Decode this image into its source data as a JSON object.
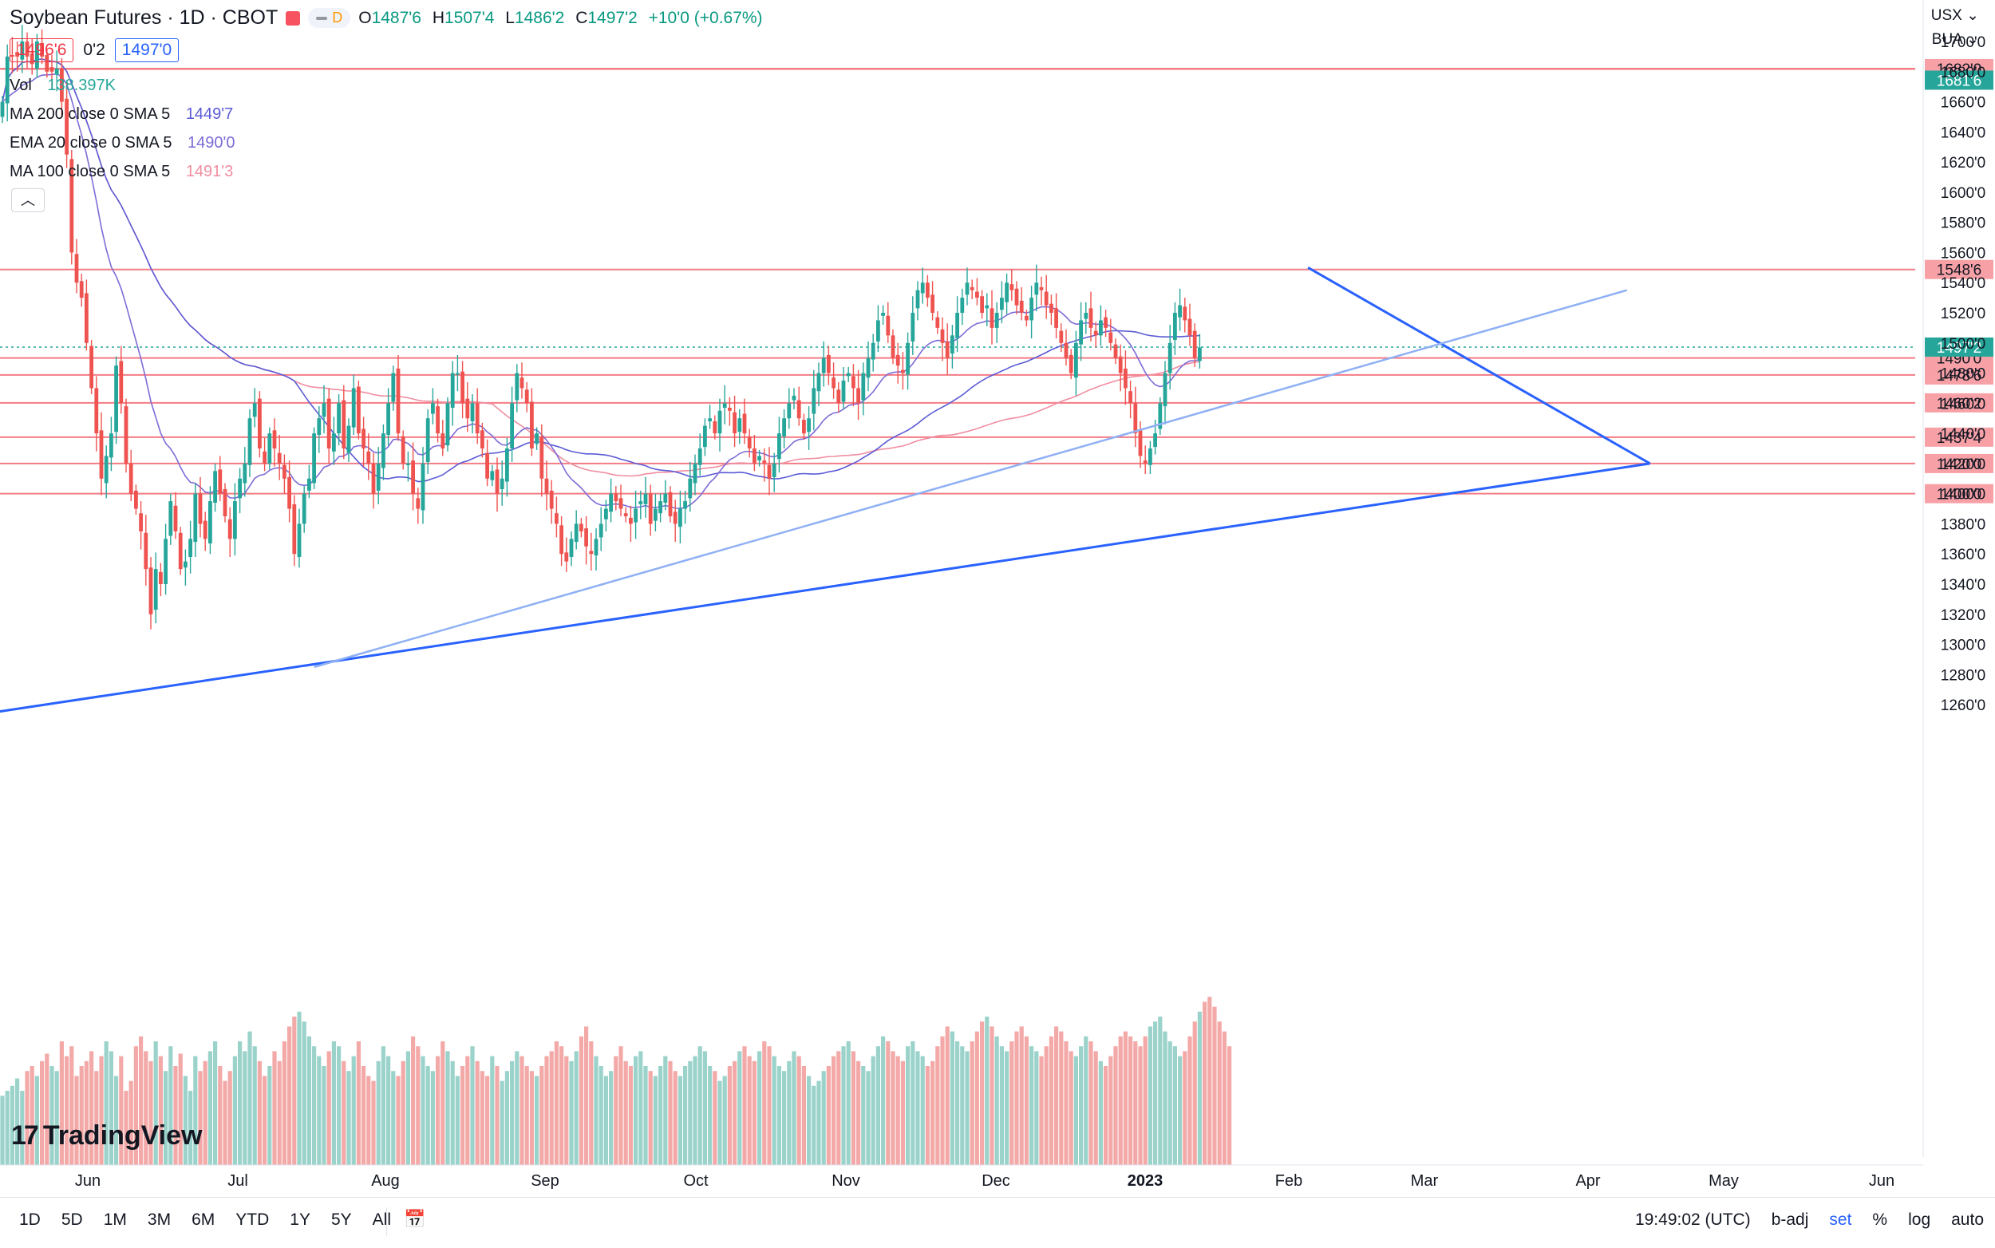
{
  "header": {
    "title": "Soybean Futures · 1D · CBOT",
    "pill_letter": "D",
    "ohlc": [
      {
        "label": "O",
        "value": "1487'6"
      },
      {
        "label": "H",
        "value": "1507'4"
      },
      {
        "label": "L",
        "value": "1486'2"
      },
      {
        "label": "C",
        "value": "1497'2"
      }
    ],
    "change": "+10'0 (+0.67%)",
    "bid": "1496'6",
    "spread": "0'2",
    "ask": "1497'0"
  },
  "legend": {
    "vol": {
      "name": "Vol",
      "value": "138.397K"
    },
    "ma200": {
      "name": "MA",
      "params": "200 close 0 SMA 5",
      "value": "1449'7"
    },
    "ema20": {
      "name": "EMA",
      "params": "20 close 0 SMA 5",
      "value": "1490'0"
    },
    "ma100": {
      "name": "MA",
      "params": "100 close 0 SMA 5",
      "value": "1491'3"
    },
    "collapse_icon": "chevron-up-icon"
  },
  "right_panel": {
    "currency": "USX",
    "unit": "BUA"
  },
  "colors": {
    "up": "#26a69a",
    "down": "#ef5350",
    "hline": "#f47c85",
    "ma200": "#5b5bd6",
    "ema20": "#7e6bd6",
    "ma100": "#f08ea0",
    "trend": "#2962ff",
    "price_label": "#26a69a"
  },
  "bottom_toolbar": {
    "ranges": [
      "1D",
      "5D",
      "1M",
      "3M",
      "6M",
      "YTD",
      "1Y",
      "5Y",
      "All"
    ],
    "calendar_icon": "calendar-icon",
    "time": "19:49:02 (UTC)",
    "options": [
      "b-adj",
      "set",
      "%",
      "log",
      "auto"
    ]
  },
  "brand": "TradingView",
  "chart_data": {
    "type": "candlestick",
    "title": "Soybean Futures · 1D · CBOT",
    "y_range": [
      1250,
      1710
    ],
    "y_ticks": [
      "1700'0",
      "1680'0",
      "1660'0",
      "1640'0",
      "1620'0",
      "1600'0",
      "1580'0",
      "1560'0",
      "1540'0",
      "1520'0",
      "1500'0",
      "1480'0",
      "1460'0",
      "1440'0",
      "1420'0",
      "1400'0",
      "1380'0",
      "1360'0",
      "1340'0",
      "1320'0",
      "1300'0",
      "1280'0",
      "1260'0"
    ],
    "x_labels": [
      "Jun",
      "Jul",
      "Aug",
      "Sep",
      "Oct",
      "Nov",
      "Dec",
      "2023",
      "Feb",
      "Mar",
      "Apr",
      "May",
      "Jun"
    ],
    "horizontal_lines": [
      {
        "price": 1682,
        "label": "1682'0"
      },
      {
        "price": 1681.75,
        "label": "1681'6"
      },
      {
        "price": 1548.75,
        "label": "1548'6"
      },
      {
        "price": 1490,
        "label": "1490'0"
      },
      {
        "price": 1478.75,
        "label": "1478'6"
      },
      {
        "price": 1460.25,
        "label": "1460'2"
      },
      {
        "price": 1437.5,
        "label": "1437'4"
      },
      {
        "price": 1420,
        "label": "1420'0"
      },
      {
        "price": 1400,
        "label": "1400'0"
      }
    ],
    "last_price": {
      "price": 1497.25,
      "label": "1497'2"
    },
    "trendlines": [
      {
        "from": [
          "2022-05-01",
          1250
        ],
        "to": [
          "2023-05-05",
          1420
        ]
      },
      {
        "from": [
          "2023-02-20",
          1550
        ],
        "to": [
          "2023-05-05",
          1420
        ]
      },
      {
        "from": [
          "2022-07-20",
          1285
        ],
        "to": [
          "2023-04-30",
          1535
        ]
      }
    ],
    "closes": [
      1660,
      1690,
      1690,
      1690,
      1700,
      1690,
      1685,
      1700,
      1690,
      1680,
      1680,
      1682,
      1660,
      1625,
      1560,
      1540,
      1530,
      1500,
      1470,
      1440,
      1410,
      1425,
      1440,
      1485,
      1460,
      1420,
      1400,
      1390,
      1375,
      1350,
      1320,
      1350,
      1340,
      1370,
      1395,
      1375,
      1350,
      1355,
      1370,
      1400,
      1380,
      1370,
      1395,
      1415,
      1400,
      1385,
      1370,
      1395,
      1410,
      1420,
      1450,
      1460,
      1430,
      1420,
      1440,
      1430,
      1420,
      1410,
      1390,
      1360,
      1380,
      1400,
      1410,
      1440,
      1450,
      1460,
      1430,
      1440,
      1460,
      1430,
      1445,
      1470,
      1440,
      1430,
      1420,
      1400,
      1420,
      1440,
      1460,
      1480,
      1440,
      1420,
      1420,
      1400,
      1390,
      1420,
      1450,
      1460,
      1440,
      1430,
      1460,
      1480,
      1480,
      1460,
      1450,
      1460,
      1440,
      1430,
      1410,
      1415,
      1400,
      1410,
      1430,
      1460,
      1480,
      1470,
      1460,
      1430,
      1440,
      1410,
      1400,
      1390,
      1380,
      1360,
      1355,
      1370,
      1380,
      1375,
      1365,
      1360,
      1370,
      1380,
      1390,
      1400,
      1395,
      1390,
      1385,
      1380,
      1390,
      1395,
      1400,
      1380,
      1390,
      1395,
      1400,
      1385,
      1380,
      1390,
      1395,
      1410,
      1420,
      1430,
      1445,
      1450,
      1440,
      1455,
      1460,
      1455,
      1440,
      1450,
      1440,
      1430,
      1420,
      1425,
      1420,
      1410,
      1420,
      1440,
      1450,
      1460,
      1465,
      1450,
      1440,
      1450,
      1470,
      1480,
      1490,
      1480,
      1470,
      1460,
      1475,
      1480,
      1470,
      1460,
      1480,
      1490,
      1500,
      1515,
      1520,
      1505,
      1490,
      1485,
      1480,
      1500,
      1520,
      1535,
      1540,
      1530,
      1520,
      1510,
      1500,
      1490,
      1505,
      1520,
      1530,
      1540,
      1535,
      1530,
      1520,
      1525,
      1510,
      1520,
      1530,
      1540,
      1535,
      1525,
      1520,
      1515,
      1530,
      1540,
      1535,
      1525,
      1520,
      1510,
      1500,
      1490,
      1480,
      1500,
      1515,
      1520,
      1510,
      1505,
      1515,
      1510,
      1500,
      1490,
      1480,
      1470,
      1460,
      1440,
      1425,
      1420,
      1430,
      1440,
      1460,
      1480,
      1500,
      1520,
      1525,
      1515,
      1505,
      1490,
      1497
    ],
    "volumes": [
      28,
      30,
      32,
      35,
      30,
      38,
      40,
      36,
      42,
      45,
      40,
      38,
      50,
      44,
      48,
      36,
      40,
      42,
      46,
      38,
      44,
      50,
      46,
      36,
      44,
      30,
      34,
      48,
      52,
      46,
      42,
      50,
      44,
      38,
      48,
      40,
      45,
      36,
      30,
      44,
      38,
      42,
      46,
      50,
      40,
      34,
      38,
      44,
      50,
      46,
      54,
      48,
      42,
      36,
      40,
      46,
      42,
      50,
      56,
      60,
      62,
      58,
      52,
      48,
      44,
      40,
      46,
      50,
      48,
      42,
      38,
      44,
      50,
      40,
      36,
      34,
      42,
      48,
      44,
      38,
      36,
      42,
      46,
      52,
      48,
      44,
      40,
      38,
      44,
      50,
      46,
      42,
      36,
      40,
      44,
      48,
      42,
      38,
      36,
      44,
      40,
      34,
      38,
      42,
      46,
      44,
      40,
      38,
      36,
      40,
      44,
      46,
      50,
      48,
      44,
      42,
      46,
      52,
      56,
      50,
      44,
      40,
      36,
      38,
      44,
      48,
      42,
      40,
      44,
      46,
      40,
      38,
      36,
      40,
      44,
      42,
      38,
      36,
      40,
      42,
      44,
      48,
      46,
      40,
      38,
      34,
      36,
      40,
      42,
      46,
      48,
      44,
      42,
      46,
      50,
      48,
      44,
      40,
      38,
      42,
      46,
      44,
      40,
      36,
      32,
      34,
      38,
      40,
      44,
      46,
      48,
      50,
      46,
      42,
      40,
      38,
      44,
      48,
      52,
      50,
      46,
      44,
      42,
      48,
      50,
      46,
      44,
      40,
      42,
      48,
      52,
      56,
      54,
      50,
      48,
      46,
      50,
      54,
      58,
      60,
      56,
      52,
      48,
      46,
      50,
      54,
      56,
      52,
      48,
      46,
      44,
      48,
      52,
      56,
      54,
      50,
      46,
      44,
      48,
      52,
      50,
      46,
      42,
      40,
      44,
      48,
      52,
      54,
      52,
      50,
      48,
      52,
      56,
      58,
      60,
      54,
      50,
      48,
      44,
      46,
      52,
      58,
      62,
      66,
      68,
      64,
      58,
      54,
      48
    ]
  }
}
